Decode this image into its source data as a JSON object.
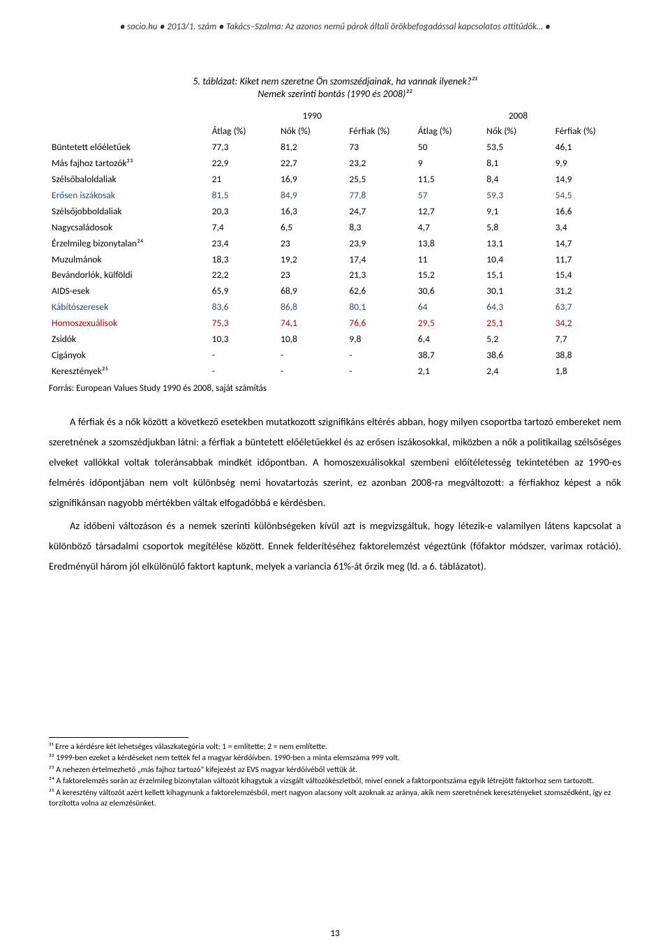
{
  "header": {
    "line": "● socio.hu ● 2013/1. szám ● Takács–Szalma: Az azonos nemű párok általi örökbefogadással kapcsolatos attitűdök… ●"
  },
  "table_titles": {
    "line1": "5. táblázat: Kiket nem szeretne Ön szomszédjainak, ha vannak ilyenek?²¹",
    "line2": "Nemek szerinti bontás (1990 és 2008)²²"
  },
  "table": {
    "year_headers": [
      "1990",
      "2008"
    ],
    "sub_headers": [
      "Átlag (%)",
      "Nők (%)",
      "Férfiak (%)",
      "Átlag (%)",
      "Nők (%)",
      "Férfiak (%)"
    ],
    "rows": [
      {
        "label": "Büntetett előéletűek",
        "class": "bold",
        "cells": [
          "77,3",
          "81,2",
          "73",
          "50",
          "53,5",
          "46,1"
        ]
      },
      {
        "label": "Más fajhoz tartozók²³",
        "class": "bold",
        "cells": [
          "22,9",
          "22,7",
          "23,2",
          "9",
          "8,1",
          "9,9"
        ]
      },
      {
        "label": "Szélsőbaloldaliak",
        "class": "bold",
        "cells": [
          "21",
          "16,9",
          "25,5",
          "11,5",
          "8,4",
          "14,9"
        ]
      },
      {
        "label": "Erősen iszákosak",
        "class": "bold blue",
        "cells": [
          "81,5",
          "84,9",
          "77,8",
          "57",
          "59,3",
          "54,5"
        ]
      },
      {
        "label": "Szélsőjobboldaliak",
        "class": "bold",
        "cells": [
          "20,3",
          "16,3",
          "24,7",
          "12,7",
          "9,1",
          "16,6"
        ]
      },
      {
        "label": "Nagycsaládosok",
        "class": "bold",
        "cells": [
          "7,4",
          "6,5",
          "8,3",
          "4,7",
          "5,8",
          "3,4"
        ]
      },
      {
        "label": "Érzelmileg bizonytalan²⁴",
        "class": "bold",
        "cells": [
          "23,4",
          "23",
          "23,9",
          "13,8",
          "13,1",
          "14,7"
        ]
      },
      {
        "label": "Muzulmánok",
        "class": "bold",
        "cells": [
          "18,3",
          "19,2",
          "17,4",
          "11",
          "10,4",
          "11,7"
        ]
      },
      {
        "label": "Bevándorlók, külföldi",
        "class": "bold",
        "cells": [
          "22,2",
          "23",
          "21,3",
          "15,2",
          "15,1",
          "15,4"
        ]
      },
      {
        "label": "AIDS-esek",
        "class": "bold",
        "cells": [
          "65,9",
          "68,9",
          "62,6",
          "30,6",
          "30,1",
          "31,2"
        ]
      },
      {
        "label": "Kábítószeresek",
        "class": "bold blue",
        "cells": [
          "83,6",
          "86,8",
          "80,1",
          "64",
          "64,3",
          "63,7"
        ]
      },
      {
        "label": "Homoszexuálisok",
        "class": "bold red",
        "cells": [
          "75,3",
          "74,1",
          "76,6",
          "29,5",
          "25,1",
          "34,2"
        ]
      },
      {
        "label": "Zsidók",
        "class": "bold",
        "cells": [
          "10,3",
          "10,8",
          "9,8",
          "6,4",
          "5,2",
          "7,7"
        ]
      },
      {
        "label": "Cigányok",
        "class": "bold",
        "cells": [
          "-",
          "-",
          "-",
          "38,7",
          "38,6",
          "38,8"
        ]
      },
      {
        "label": "Keresztények²⁵",
        "class": "bold",
        "cells": [
          "-",
          "-",
          "-",
          "2,1",
          "2,4",
          "1,8"
        ]
      }
    ],
    "source": "Forrás: European Values Study 1990 és 2008, saját számítás",
    "styling": {
      "font_size_pt": 10,
      "label_bold": true,
      "header_bold": true,
      "text_color": "#000000",
      "highlight_red": "#c00000",
      "highlight_blue": "#1f497d",
      "background": "#ffffff"
    }
  },
  "body": {
    "p1": "A férfiak és a nők között a következő esetekben mutatkozott szignifikáns eltérés abban, hogy milyen csoportba tartozó embereket nem szeretnének a szomszédjukban látni: a férfiak a büntetett előéletűekkel és az erősen iszákosokkal, miközben a nők a politikailag szélsőséges elveket vallókkal voltak toleránsabbak mindkét időpontban. A homoszexuálisokkal szembeni előítéletesség tekintetében az 1990-es felmérés időpontjában nem volt különbség nemi hovatartozás szerint, ez azonban 2008-ra megváltozott: a férfiakhoz képest a nők szignifikánsan nagyobb mértékben váltak elfogadóbbá e kérdésben.",
    "p2": "Az időbeni változáson és a nemek szerinti különbségeken kívül azt is megvizsgáltuk, hogy létezik-e valamilyen látens kapcsolat a különböző társadalmi csoportok megítélése között. Ennek felderítéséhez faktorelemzést végeztünk (főfaktor módszer, varimax rotáció). Eredményül három jól elkülönülő faktort kaptunk, melyek a variancia 61%-át őrzik meg (ld. a 6. táblázatot)."
  },
  "footnotes": {
    "items": [
      "²¹ Erre a kérdésre két lehetséges válaszkategória volt: 1 = említette; 2 = nem említette.",
      "²² 1999-ben ezeket a kérdéseket nem tették fel a magyar kérdőívben. 1990-ben a minta elemszáma 999 volt.",
      "²³ A nehezen értelmezhető „más fajhoz tartozó” kifejezést az EVS magyar kérdőívéből vettük át.",
      "²⁴ A faktorelemzés során az érzelmileg bizonytalan változót kihagytuk a vizsgált változókészletből, mivel ennek a faktorpontszáma egyik létrejött faktorhoz sem tartozott.",
      "²⁵ A keresztény változót azért kellett kihagynunk a faktorelemzésből, mert nagyon alacsony volt azoknak az aránya, akik nem szeretnének keresztényeket szomszédként, így ez torzította volna az elemzésünket."
    ]
  },
  "page_number": "13"
}
